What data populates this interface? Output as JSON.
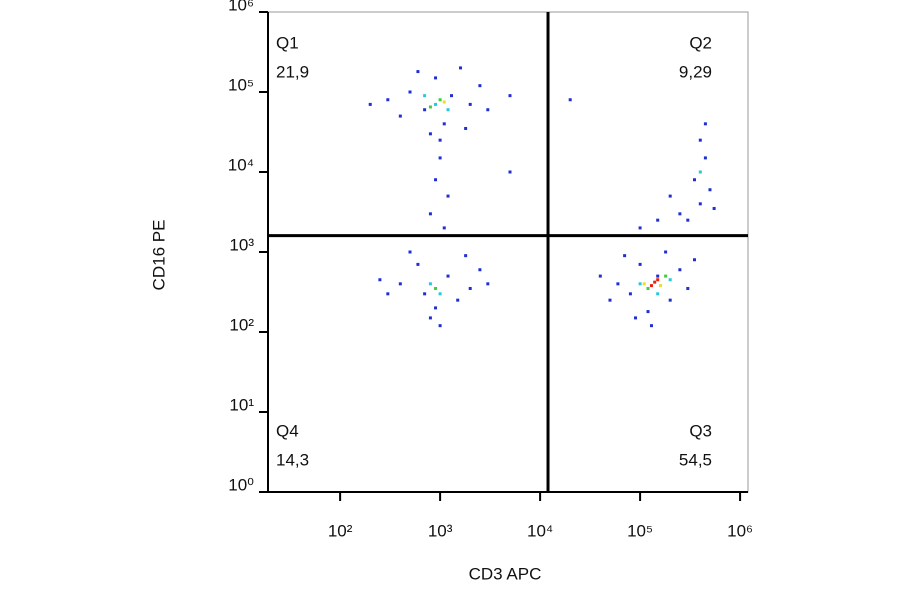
{
  "chart_data": {
    "type": "scatter",
    "x_label": "CD3 APC",
    "y_label": "CD16 PE",
    "log_x": true,
    "log_y": true,
    "xlim": [
      19,
      1200000
    ],
    "ylim": [
      1,
      1000000
    ],
    "xticks": [
      {
        "value": 100,
        "label": "10²"
      },
      {
        "value": 1000,
        "label": "10³"
      },
      {
        "value": 10000,
        "label": "10⁴"
      },
      {
        "value": 100000,
        "label": "10⁵"
      },
      {
        "value": 1000000,
        "label": "10⁶"
      }
    ],
    "yticks": [
      {
        "value": 1,
        "label": "10⁰"
      },
      {
        "value": 10,
        "label": "10¹"
      },
      {
        "value": 100,
        "label": "10²"
      },
      {
        "value": 1000,
        "label": "10³"
      },
      {
        "value": 10000,
        "label": "10⁴"
      },
      {
        "value": 100000,
        "label": "10⁵"
      },
      {
        "value": 1000000,
        "label": "10⁶"
      }
    ],
    "gate": {
      "x": 12000,
      "y": 1600
    },
    "quadrants": [
      {
        "name": "Q1",
        "value": 21.9,
        "value_label": "21,9",
        "corner": "top-left"
      },
      {
        "name": "Q2",
        "value": 9.29,
        "value_label": "9,29",
        "corner": "top-right"
      },
      {
        "name": "Q3",
        "value": 54.5,
        "value_label": "54,5",
        "corner": "bottom-right"
      },
      {
        "name": "Q4",
        "value": 14.3,
        "value_label": "14,3",
        "corner": "bottom-left"
      }
    ],
    "series": [
      {
        "color": "#1f2fd0",
        "x": [
          700,
          1300,
          500,
          2000,
          900,
          1600,
          400,
          1100,
          2500,
          600,
          800,
          1800,
          300,
          3000,
          1000,
          5000,
          200,
          1000,
          900,
          1200,
          800,
          1100,
          5000,
          20000,
          700,
          1200,
          400,
          2000,
          600,
          900,
          1500,
          300,
          2500,
          500,
          800,
          1800,
          250,
          3000,
          1000,
          80000,
          150000,
          60000,
          200000,
          100000,
          120000,
          250000,
          50000,
          180000,
          300000,
          70000,
          40000,
          90000,
          350000,
          130000,
          300000,
          400000,
          350000,
          450000,
          500000,
          250000,
          400000,
          150000,
          200000,
          450000,
          100000,
          550000
        ],
        "y": [
          60000,
          90000,
          100000,
          70000,
          150000,
          200000,
          50000,
          40000,
          120000,
          180000,
          30000,
          35000,
          80000,
          60000,
          25000,
          90000,
          70000,
          15000,
          8000,
          5000,
          3000,
          2000,
          10000,
          80000,
          300,
          500,
          400,
          350,
          700,
          200,
          250,
          300,
          600,
          1000,
          150,
          900,
          450,
          400,
          120,
          300,
          500,
          400,
          250,
          700,
          180,
          600,
          250,
          1000,
          350,
          900,
          500,
          150,
          800,
          120,
          2500,
          4000,
          8000,
          15000,
          6000,
          3000,
          25000,
          2500,
          5000,
          40000,
          2000,
          3500
        ]
      },
      {
        "color": "#22c8e0",
        "x": [
          900,
          1200,
          700,
          800,
          1000,
          100000,
          150000,
          200000,
          400000
        ],
        "y": [
          70000,
          60000,
          90000,
          400,
          300,
          400,
          300,
          450,
          10000
        ]
      },
      {
        "color": "#3ccf3c",
        "x": [
          1000,
          800,
          900,
          120000,
          180000
        ],
        "y": [
          80000,
          65000,
          350,
          350,
          500
        ]
      },
      {
        "color": "#e8e020",
        "x": [
          1100,
          110000,
          160000
        ],
        "y": [
          75000,
          400,
          380
        ]
      },
      {
        "color": "#e82010",
        "x": [
          140000,
          130000,
          150000
        ],
        "y": [
          420,
          380,
          450
        ]
      }
    ]
  }
}
